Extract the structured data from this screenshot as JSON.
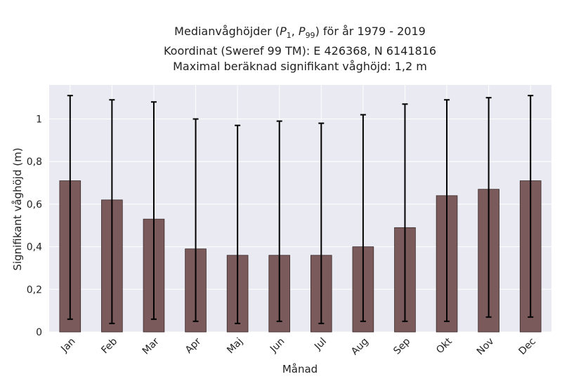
{
  "title": {
    "line1_prefix": "Medianvåghöjder (",
    "p1_base": "P",
    "p1_sub": "1",
    "comma": ", ",
    "p99_base": "P",
    "p99_sub": "99",
    "line1_suffix": ") för år 1979 - 2019",
    "line2": "Koordinat (Sweref 99 TM): E 426368, N 6141816",
    "line3": "Maximal beräknad signifikant våghöjd: 1,2 m"
  },
  "chart_data": {
    "type": "bar",
    "categories": [
      "Jan",
      "Feb",
      "Mar",
      "Apr",
      "Maj",
      "Jun",
      "Jul",
      "Aug",
      "Sep",
      "Okt",
      "Nov",
      "Dec"
    ],
    "values": [
      0.71,
      0.62,
      0.53,
      0.39,
      0.36,
      0.36,
      0.36,
      0.4,
      0.49,
      0.64,
      0.67,
      0.71
    ],
    "p1": [
      0.06,
      0.04,
      0.06,
      0.05,
      0.04,
      0.05,
      0.04,
      0.05,
      0.05,
      0.05,
      0.07,
      0.07
    ],
    "p99": [
      1.11,
      1.09,
      1.08,
      1.0,
      0.97,
      0.99,
      0.98,
      1.02,
      1.07,
      1.09,
      1.1,
      1.11
    ],
    "xlabel": "Månad",
    "ylabel": "Signifikant våghöjd (m)",
    "ylim": [
      0,
      1.16
    ],
    "yticks": [
      0,
      0.2,
      0.4,
      0.6,
      0.8,
      1
    ],
    "ytick_labels": [
      "0",
      "0,2",
      "0,4",
      "0,6",
      "0,8",
      "1"
    ],
    "grid": true,
    "colors": {
      "bar": "#7a5a5a",
      "bar_edge": "#3a2a2a",
      "error": "#000000",
      "background": "#eaeaf2",
      "grid": "#ffffff"
    }
  }
}
